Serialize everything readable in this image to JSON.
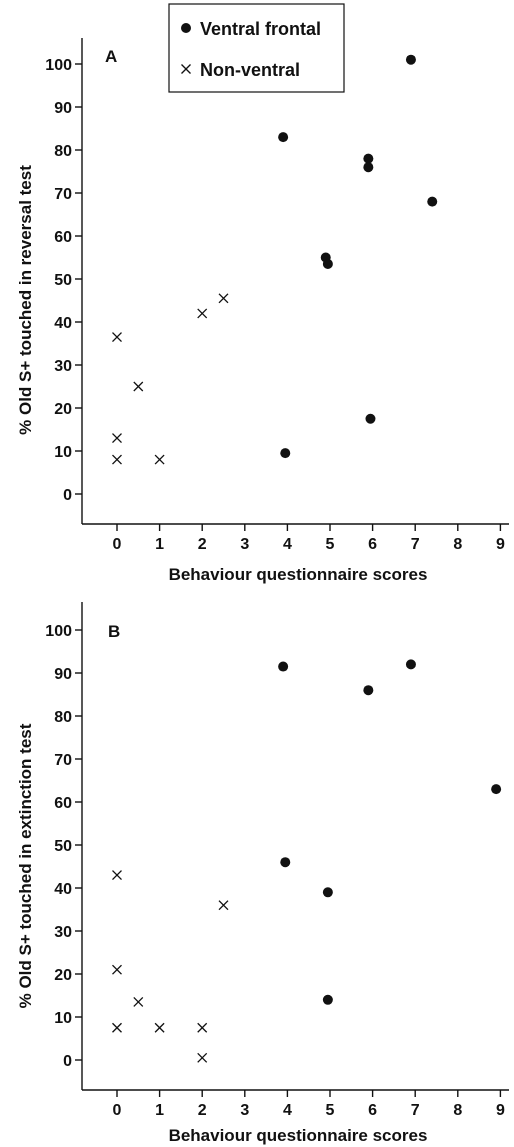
{
  "legend": [
    {
      "marker": "dot",
      "label": "Ventral frontal"
    },
    {
      "marker": "cross",
      "label": "Non-ventral"
    }
  ],
  "chart_data": [
    {
      "type": "scatter",
      "panel": "A",
      "ylabel": "% Old S+ touched in reversal test",
      "xlabel": "Behaviour questionnaire scores",
      "x_ticks": [
        0,
        1,
        2,
        3,
        4,
        5,
        6,
        7,
        8,
        9
      ],
      "y_ticks": [
        0,
        10,
        20,
        30,
        40,
        50,
        60,
        70,
        80,
        90,
        100
      ],
      "xlim": [
        -0.8,
        9.2
      ],
      "ylim": [
        -7,
        107
      ],
      "series": [
        {
          "name": "Ventral frontal",
          "marker": "dot",
          "points": [
            [
              3.9,
              83
            ],
            [
              4.9,
              55
            ],
            [
              4.95,
              53.5
            ],
            [
              5.9,
              78
            ],
            [
              5.9,
              76
            ],
            [
              6.9,
              101
            ],
            [
              7.4,
              68
            ],
            [
              3.95,
              9.5
            ],
            [
              5.95,
              17.5
            ]
          ]
        },
        {
          "name": "Non-ventral",
          "marker": "cross",
          "points": [
            [
              0,
              36.5
            ],
            [
              0,
              13
            ],
            [
              0,
              8
            ],
            [
              0.5,
              25
            ],
            [
              1,
              8
            ],
            [
              2,
              42
            ],
            [
              2.5,
              45.5
            ]
          ]
        }
      ]
    },
    {
      "type": "scatter",
      "panel": "B",
      "ylabel": "% Old S+ touched in extinction test",
      "xlabel": "Behaviour questionnaire scores",
      "x_ticks": [
        0,
        1,
        2,
        3,
        4,
        5,
        6,
        7,
        8,
        9
      ],
      "y_ticks": [
        0,
        10,
        20,
        30,
        40,
        50,
        60,
        70,
        80,
        90,
        100
      ],
      "xlim": [
        -0.8,
        9.2
      ],
      "ylim": [
        -7,
        107
      ],
      "series": [
        {
          "name": "Ventral frontal",
          "marker": "dot",
          "points": [
            [
              3.9,
              91.5
            ],
            [
              5.9,
              86
            ],
            [
              6.9,
              92
            ],
            [
              8.9,
              63
            ],
            [
              3.95,
              46
            ],
            [
              4.95,
              39
            ],
            [
              4.95,
              14
            ]
          ]
        },
        {
          "name": "Non-ventral",
          "marker": "cross",
          "points": [
            [
              0,
              43
            ],
            [
              0,
              21
            ],
            [
              0,
              7.5
            ],
            [
              0.5,
              13.5
            ],
            [
              1,
              7.5
            ],
            [
              2,
              7.5
            ],
            [
              2,
              0.5
            ],
            [
              2.5,
              36
            ]
          ]
        }
      ]
    }
  ]
}
